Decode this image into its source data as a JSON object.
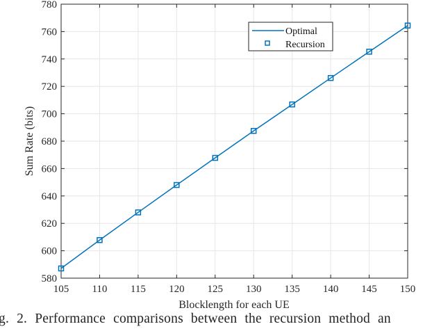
{
  "chart_data": {
    "type": "line",
    "xlabel": "Blocklength for each UE",
    "ylabel": "Sum Rate (bits)",
    "xlim": [
      105,
      150
    ],
    "ylim": [
      580,
      780
    ],
    "xticks": [
      105,
      110,
      115,
      120,
      125,
      130,
      135,
      140,
      145,
      150
    ],
    "yticks": [
      580,
      600,
      620,
      640,
      660,
      680,
      700,
      720,
      740,
      760,
      780
    ],
    "grid": true,
    "legend_position": "top-right",
    "x": [
      105,
      110,
      115,
      120,
      125,
      130,
      135,
      140,
      145,
      150
    ],
    "series": [
      {
        "name": "Optimal",
        "style": "line",
        "color": "#0072BD",
        "values": [
          587.1,
          607.8,
          628.0,
          648.0,
          667.8,
          687.5,
          706.8,
          726.1,
          745.3,
          764.4
        ]
      },
      {
        "name": "Recursion",
        "style": "square-marker",
        "color": "#0072BD",
        "values": [
          587.1,
          607.8,
          628.0,
          648.0,
          667.8,
          687.5,
          706.8,
          726.1,
          745.3,
          764.4
        ]
      }
    ]
  },
  "caption": "g. 2.  Performance comparisons between the recursion method an"
}
